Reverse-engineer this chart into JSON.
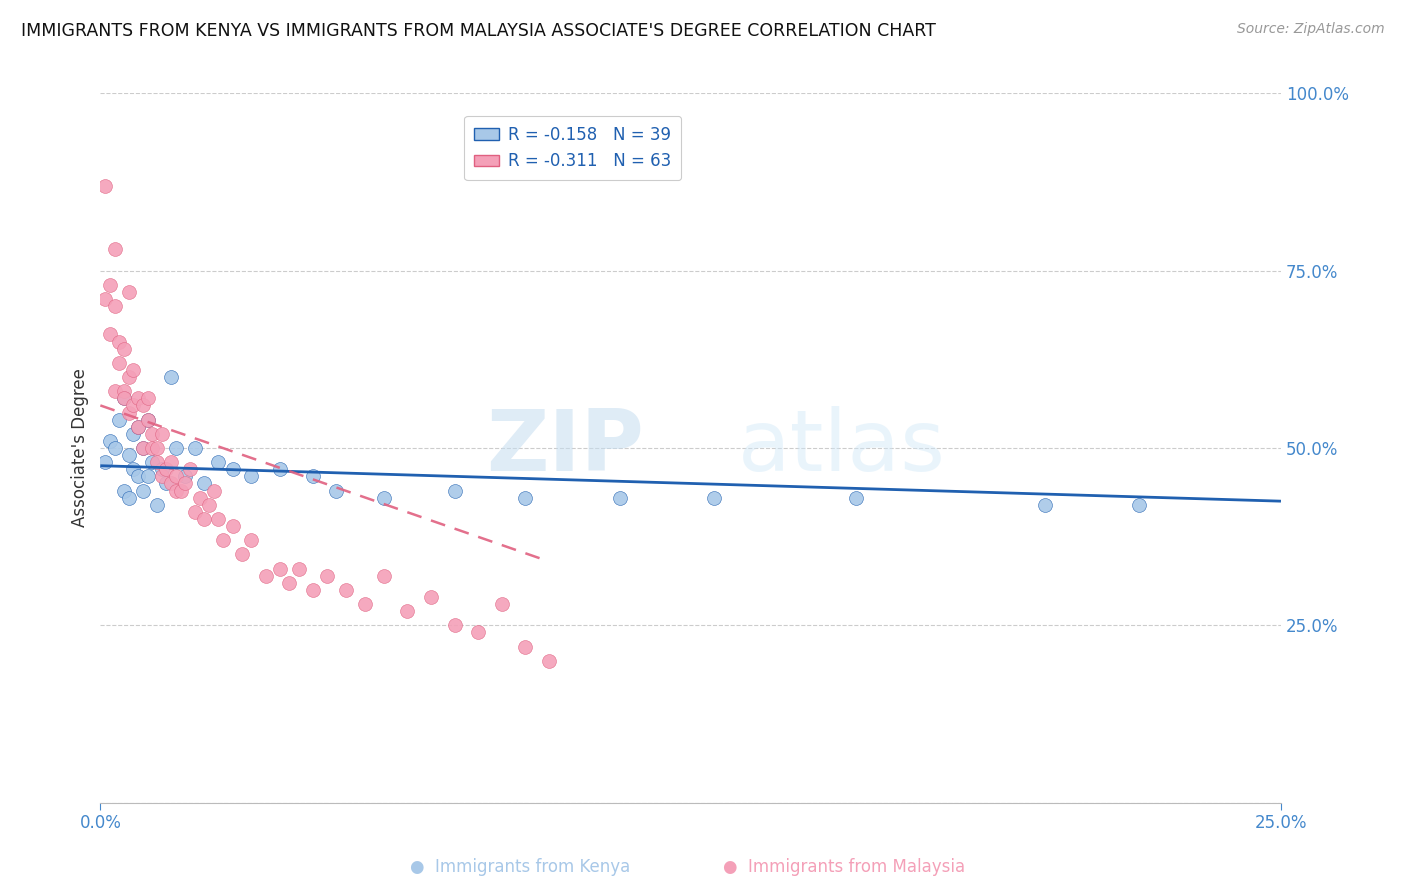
{
  "title": "IMMIGRANTS FROM KENYA VS IMMIGRANTS FROM MALAYSIA ASSOCIATE'S DEGREE CORRELATION CHART",
  "source": "Source: ZipAtlas.com",
  "ylabel": "Associate's Degree",
  "legend_label_kenya": "Immigrants from Kenya",
  "legend_label_malaysia": "Immigrants from Malaysia",
  "kenya_color": "#a8c8e8",
  "malaysia_color": "#f4a0b8",
  "kenya_line_color": "#2060b0",
  "malaysia_line_color": "#e06080",
  "kenya_R": -0.158,
  "kenya_N": 39,
  "malaysia_R": -0.311,
  "malaysia_N": 63,
  "kenya_points_x": [
    0.001,
    0.002,
    0.003,
    0.004,
    0.005,
    0.005,
    0.006,
    0.006,
    0.007,
    0.007,
    0.008,
    0.008,
    0.009,
    0.009,
    0.01,
    0.01,
    0.011,
    0.012,
    0.013,
    0.014,
    0.015,
    0.016,
    0.018,
    0.02,
    0.022,
    0.025,
    0.028,
    0.032,
    0.038,
    0.045,
    0.05,
    0.06,
    0.075,
    0.09,
    0.11,
    0.13,
    0.16,
    0.2,
    0.22
  ],
  "kenya_points_y": [
    0.48,
    0.51,
    0.5,
    0.54,
    0.44,
    0.57,
    0.43,
    0.49,
    0.47,
    0.52,
    0.46,
    0.53,
    0.44,
    0.5,
    0.46,
    0.54,
    0.48,
    0.42,
    0.47,
    0.45,
    0.6,
    0.5,
    0.46,
    0.5,
    0.45,
    0.48,
    0.47,
    0.46,
    0.47,
    0.46,
    0.44,
    0.43,
    0.44,
    0.43,
    0.43,
    0.43,
    0.43,
    0.42,
    0.42
  ],
  "malaysia_points_x": [
    0.001,
    0.001,
    0.002,
    0.002,
    0.003,
    0.003,
    0.003,
    0.004,
    0.004,
    0.005,
    0.005,
    0.005,
    0.006,
    0.006,
    0.006,
    0.007,
    0.007,
    0.008,
    0.008,
    0.009,
    0.009,
    0.01,
    0.01,
    0.011,
    0.011,
    0.012,
    0.012,
    0.013,
    0.013,
    0.014,
    0.015,
    0.015,
    0.016,
    0.016,
    0.017,
    0.018,
    0.019,
    0.02,
    0.021,
    0.022,
    0.023,
    0.024,
    0.025,
    0.026,
    0.028,
    0.03,
    0.032,
    0.035,
    0.038,
    0.04,
    0.042,
    0.045,
    0.048,
    0.052,
    0.056,
    0.06,
    0.065,
    0.07,
    0.075,
    0.08,
    0.085,
    0.09,
    0.095
  ],
  "malaysia_points_y": [
    0.87,
    0.71,
    0.66,
    0.73,
    0.7,
    0.78,
    0.58,
    0.65,
    0.62,
    0.64,
    0.58,
    0.57,
    0.6,
    0.55,
    0.72,
    0.56,
    0.61,
    0.53,
    0.57,
    0.56,
    0.5,
    0.57,
    0.54,
    0.5,
    0.52,
    0.48,
    0.5,
    0.46,
    0.52,
    0.47,
    0.45,
    0.48,
    0.46,
    0.44,
    0.44,
    0.45,
    0.47,
    0.41,
    0.43,
    0.4,
    0.42,
    0.44,
    0.4,
    0.37,
    0.39,
    0.35,
    0.37,
    0.32,
    0.33,
    0.31,
    0.33,
    0.3,
    0.32,
    0.3,
    0.28,
    0.32,
    0.27,
    0.29,
    0.25,
    0.24,
    0.28,
    0.22,
    0.2
  ],
  "kenya_trend_x": [
    0.0,
    0.25
  ],
  "kenya_trend_y": [
    0.475,
    0.425
  ],
  "malaysia_trend_x": [
    0.0,
    0.095
  ],
  "malaysia_trend_y": [
    0.56,
    0.34
  ],
  "xlim": [
    0.0,
    0.25
  ],
  "ylim": [
    0.0,
    1.0
  ],
  "x_ticks": [
    0.0,
    0.25
  ],
  "x_tick_labels": [
    "0.0%",
    "25.0%"
  ],
  "y_ticks": [
    0.0,
    0.25,
    0.5,
    0.75,
    1.0
  ],
  "y_tick_labels": [
    "",
    "25.0%",
    "50.0%",
    "75.0%",
    "100.0%"
  ]
}
